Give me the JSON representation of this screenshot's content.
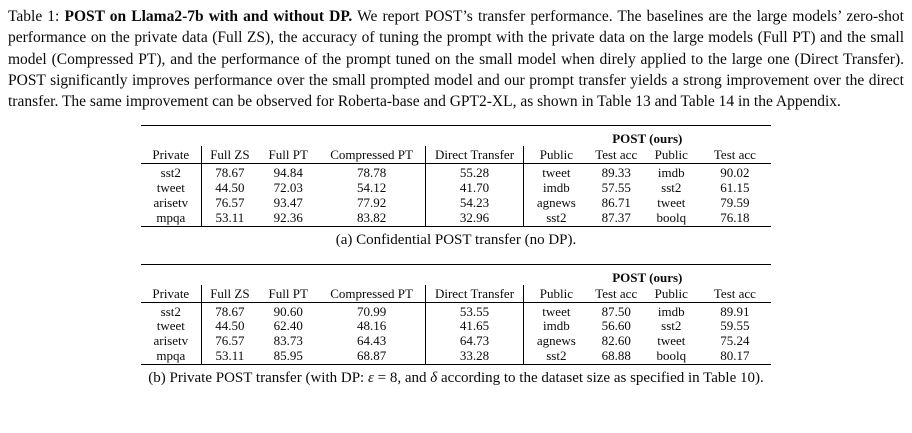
{
  "caption": {
    "label": "Table 1: ",
    "title": "POST on Llama2-7b with and without DP.",
    "body": " We report POST’s transfer performance. The baselines are the large models’ zero-shot performance on the private data (Full ZS), the accuracy of tuning the prompt with the private data on the large models (Full PT) and the small model (Compressed PT), and the performance of the prompt tuned on the small model when direly applied to the large one (Direct Transfer). POST significantly improves performance over the small prompted model and our prompt transfer yields a strong improvement over the direct transfer. The same improvement can be observed for Roberta-base and GPT2-XL, as shown in Table 13 and Table 14 in the Appendix."
  },
  "tables": [
    {
      "group_header": "POST (ours)",
      "columns": [
        "Private",
        "Full ZS",
        "Full PT",
        "Compressed PT",
        "Direct Transfer",
        "Public",
        "Test acc",
        "Public",
        "Test acc"
      ],
      "rows": [
        {
          "cells": [
            "sst2",
            "78.67",
            "94.84",
            "78.78",
            "55.28",
            "tweet",
            "89.33",
            "imdb",
            "90.02"
          ],
          "bold": [
            8
          ]
        },
        {
          "cells": [
            "tweet",
            "44.50",
            "72.03",
            "54.12",
            "41.70",
            "imdb",
            "57.55",
            "sst2",
            "61.15"
          ],
          "bold": [
            8
          ]
        },
        {
          "cells": [
            "arisetv",
            "76.57",
            "93.47",
            "77.92",
            "54.23",
            "agnews",
            "86.71",
            "tweet",
            "79.59"
          ],
          "bold": [
            6
          ]
        },
        {
          "cells": [
            "mpqa",
            "53.11",
            "92.36",
            "83.82",
            "32.96",
            "sst2",
            "87.37",
            "boolq",
            "76.18"
          ],
          "bold": [
            6
          ]
        }
      ],
      "caption_parts": [
        "(a) Confidential POST transfer (no DP)."
      ]
    },
    {
      "group_header": "POST (ours)",
      "columns": [
        "Private",
        "Full ZS",
        "Full PT",
        "Compressed PT",
        "Direct Transfer",
        "Public",
        "Test acc",
        "Public",
        "Test acc"
      ],
      "rows": [
        {
          "cells": [
            "sst2",
            "78.67",
            "90.60",
            "70.99",
            "53.55",
            "tweet",
            "87.50",
            "imdb",
            "89.91"
          ],
          "bold": [
            8
          ]
        },
        {
          "cells": [
            "tweet",
            "44.50",
            "62.40",
            "48.16",
            "41.65",
            "imdb",
            "56.60",
            "sst2",
            "59.55"
          ],
          "bold": [
            8
          ]
        },
        {
          "cells": [
            "arisetv",
            "76.57",
            "83.73",
            "64.43",
            "64.73",
            "agnews",
            "82.60",
            "tweet",
            "75.24"
          ],
          "bold": [
            6
          ]
        },
        {
          "cells": [
            "mpqa",
            "53.11",
            "85.95",
            "68.87",
            "33.28",
            "sst2",
            "68.88",
            "boolq",
            "80.17"
          ],
          "bold": [
            8
          ]
        }
      ],
      "caption_parts": [
        "(b) Private POST transfer (with DP: ",
        "ε",
        " = 8, and ",
        "δ",
        " according to the dataset size as specified in Table 10)."
      ]
    }
  ]
}
